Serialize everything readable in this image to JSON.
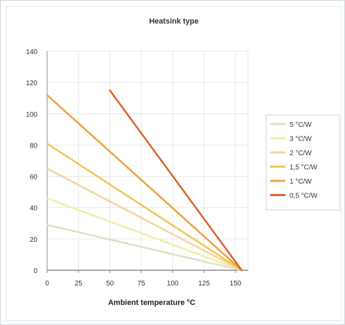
{
  "chart_data": {
    "type": "line",
    "title": "Heatsink type",
    "xlabel": "Ambient temperature °C",
    "ylabel": "",
    "xlim": [
      0,
      160
    ],
    "ylim": [
      0,
      140
    ],
    "x_ticks": [
      0,
      25,
      50,
      75,
      100,
      125,
      150
    ],
    "x_tick_labels": [
      "0",
      "25",
      "50",
      "75",
      "100",
      "125",
      "150"
    ],
    "y_ticks": [
      0,
      20,
      40,
      60,
      80,
      100,
      120,
      140
    ],
    "grid": true,
    "legend_position": "right",
    "series": [
      {
        "name": "5 °C/W",
        "color": "#dde3c4",
        "points": [
          [
            0,
            29
          ],
          [
            155,
            0
          ]
        ]
      },
      {
        "name": "3 °C/W",
        "color": "#f2eea8",
        "points": [
          [
            0,
            46
          ],
          [
            155,
            0
          ]
        ]
      },
      {
        "name": "2 °C/W",
        "color": "#f5d49b",
        "points": [
          [
            0,
            65
          ],
          [
            155,
            0
          ]
        ]
      },
      {
        "name": "1,5 °C/W",
        "color": "#f0c64e",
        "points": [
          [
            0,
            81
          ],
          [
            155,
            0
          ]
        ]
      },
      {
        "name": "1 °C/W",
        "color": "#eea23c",
        "points": [
          [
            0,
            112
          ],
          [
            155,
            0
          ]
        ]
      },
      {
        "name": "0,5 °C/W",
        "color": "#d9652b",
        "points": [
          [
            50,
            115
          ],
          [
            155,
            0
          ]
        ]
      }
    ]
  }
}
